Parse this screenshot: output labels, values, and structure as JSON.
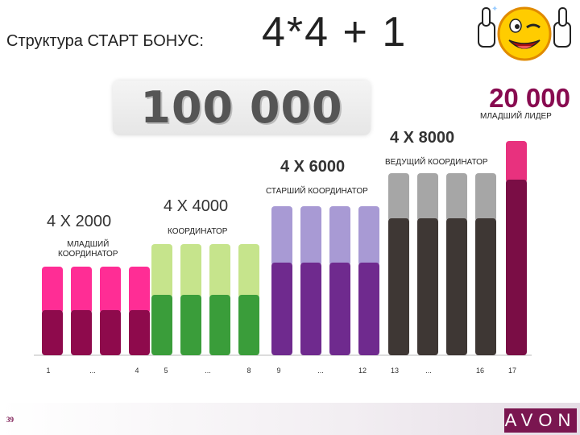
{
  "header": {
    "title_prefix": "Структура СТАРТ БОНУС:",
    "title_formula": "4*4 + 1"
  },
  "banner": {
    "total": "100 000"
  },
  "right_total": "20 000",
  "groups": [
    {
      "label": "4 X 2000",
      "role": "МЛАДШИЙ\nКООРДИНАТОР"
    },
    {
      "label": "4 X 4000",
      "role": "КООРДИНАТОР"
    },
    {
      "label": "4 X 6000",
      "role": "СТАРШИЙ КООРДИНАТОР"
    },
    {
      "label": "4 X 8000",
      "role": "ВЕДУЩИЙ КООРДИНАТОР"
    },
    {
      "label": "20 000",
      "role": "МЛАДШИЙ ЛИДЕР"
    }
  ],
  "footer": {
    "page_number": "39",
    "brand": "AVON"
  },
  "colors": {
    "g1_top": "#ff2d95",
    "g1_bottom": "#8e0a4c",
    "g2_top": "#c6e48c",
    "g2_bottom": "#3a9d3a",
    "g3_top": "#a89ad4",
    "g3_bottom": "#6f2a8e",
    "g4_top": "#a6a6a6",
    "g4_bottom": "#3e3734",
    "g5_top": "#e8317e",
    "g5_bottom": "#7a0d45"
  },
  "chart_data": {
    "type": "bar",
    "stacked": true,
    "x_tick_labels": [
      "1",
      "...",
      "4",
      "5",
      "...",
      "8",
      "9",
      "...",
      "12",
      "13",
      "...",
      "16",
      "17"
    ],
    "bars": [
      {
        "group": 0,
        "total": 110,
        "lower": 56
      },
      {
        "group": 0,
        "total": 110,
        "lower": 56
      },
      {
        "group": 0,
        "total": 110,
        "lower": 56
      },
      {
        "group": 0,
        "total": 110,
        "lower": 56
      },
      {
        "group": 1,
        "total": 138,
        "lower": 75
      },
      {
        "group": 1,
        "total": 138,
        "lower": 75
      },
      {
        "group": 1,
        "total": 138,
        "lower": 75
      },
      {
        "group": 1,
        "total": 138,
        "lower": 75
      },
      {
        "group": 2,
        "total": 185,
        "lower": 115
      },
      {
        "group": 2,
        "total": 185,
        "lower": 115
      },
      {
        "group": 2,
        "total": 185,
        "lower": 115
      },
      {
        "group": 2,
        "total": 185,
        "lower": 115
      },
      {
        "group": 3,
        "total": 226,
        "lower": 170
      },
      {
        "group": 3,
        "total": 226,
        "lower": 170
      },
      {
        "group": 3,
        "total": 226,
        "lower": 170
      },
      {
        "group": 3,
        "total": 226,
        "lower": 170
      },
      {
        "group": 4,
        "total": 266,
        "lower": 218
      }
    ],
    "title": "",
    "xlabel": "",
    "ylabel": "",
    "grid": false
  }
}
